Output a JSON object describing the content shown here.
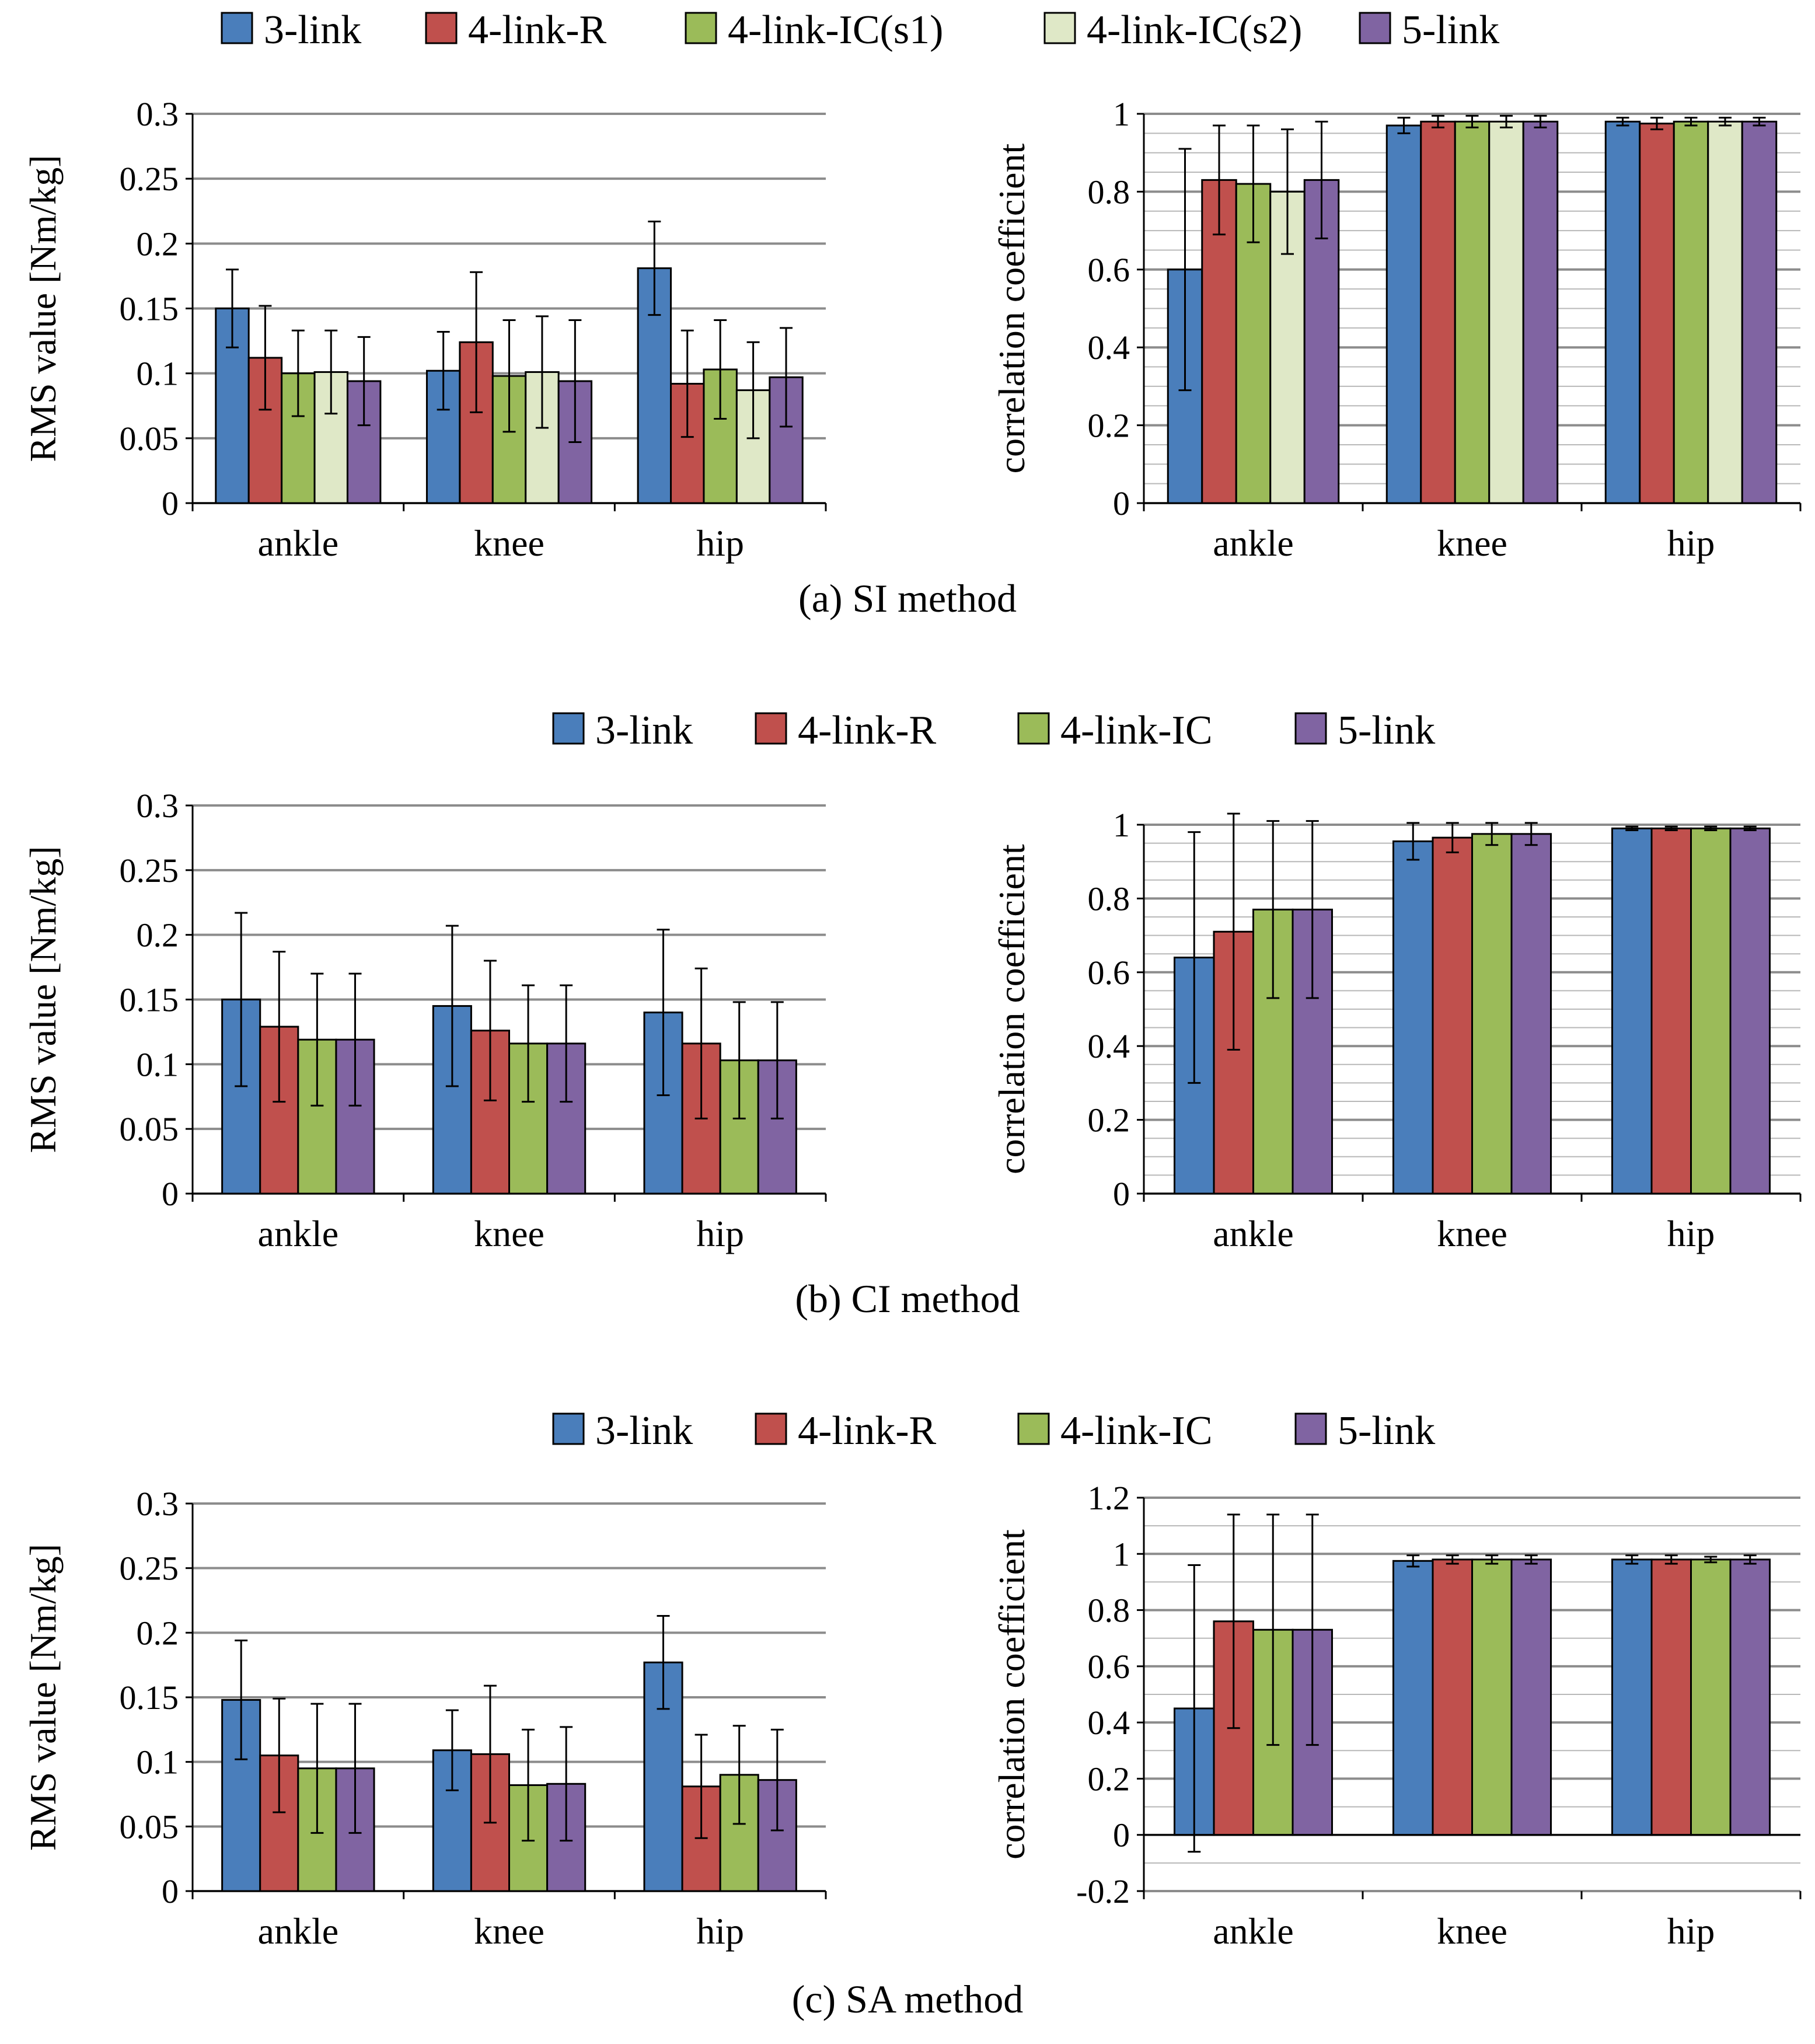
{
  "colors": {
    "3-link": "#4a7ebb",
    "4-link-R": "#c0504d",
    "4-link-IC": "#9bbb59",
    "4-link-IC(s1)": "#9bbb59",
    "4-link-IC(s2)": "#dfe8c7",
    "5-link": "#8064a2"
  },
  "captions": [
    "(a) SI method",
    "(b) CI method",
    "(c) SA method"
  ],
  "legends": [
    [
      "3-link",
      "4-link-R",
      "4-link-IC(s1)",
      "4-link-IC(s2)",
      "5-link"
    ],
    [
      "3-link",
      "4-link-R",
      "4-link-IC",
      "5-link"
    ],
    [
      "3-link",
      "4-link-R",
      "4-link-IC",
      "5-link"
    ]
  ],
  "chart_data": [
    {
      "id": "a-rms",
      "type": "bar",
      "title": "",
      "xlabel": "",
      "ylabel": "RMS value [Nm/kg]",
      "ylim": [
        0,
        0.3
      ],
      "yticks": [
        "0",
        "0.05",
        "0.1",
        "0.15",
        "0.2",
        "0.25",
        "0.3"
      ],
      "grid": true,
      "categories": [
        "ankle",
        "knee",
        "hip"
      ],
      "series": [
        {
          "name": "3-link",
          "values": [
            0.15,
            0.102,
            0.181
          ],
          "errors": [
            0.03,
            0.03,
            0.036
          ]
        },
        {
          "name": "4-link-R",
          "values": [
            0.112,
            0.124,
            0.092
          ],
          "errors": [
            0.04,
            0.054,
            0.041
          ]
        },
        {
          "name": "4-link-IC(s1)",
          "values": [
            0.1,
            0.098,
            0.103
          ],
          "errors": [
            0.033,
            0.043,
            0.038
          ]
        },
        {
          "name": "4-link-IC(s2)",
          "values": [
            0.101,
            0.101,
            0.087
          ],
          "errors": [
            0.032,
            0.043,
            0.037
          ]
        },
        {
          "name": "5-link",
          "values": [
            0.094,
            0.094,
            0.097
          ],
          "errors": [
            0.034,
            0.047,
            0.038
          ]
        }
      ]
    },
    {
      "id": "a-corr",
      "type": "bar",
      "title": "",
      "xlabel": "",
      "ylabel": "correlation coefficient",
      "ylim": [
        0,
        1
      ],
      "yticks": [
        "0",
        "0.2",
        "0.4",
        "0.6",
        "0.8",
        "1"
      ],
      "grid": true,
      "categories": [
        "ankle",
        "knee",
        "hip"
      ],
      "series": [
        {
          "name": "3-link",
          "values": [
            0.6,
            0.97,
            0.98
          ],
          "errors": [
            0.31,
            0.02,
            0.01
          ]
        },
        {
          "name": "4-link-R",
          "values": [
            0.83,
            0.98,
            0.975
          ],
          "errors": [
            0.14,
            0.015,
            0.015
          ]
        },
        {
          "name": "4-link-IC(s1)",
          "values": [
            0.82,
            0.98,
            0.98
          ],
          "errors": [
            0.15,
            0.015,
            0.01
          ]
        },
        {
          "name": "4-link-IC(s2)",
          "values": [
            0.8,
            0.98,
            0.98
          ],
          "errors": [
            0.16,
            0.015,
            0.01
          ]
        },
        {
          "name": "5-link",
          "values": [
            0.83,
            0.98,
            0.98
          ],
          "errors": [
            0.15,
            0.015,
            0.01
          ]
        }
      ]
    },
    {
      "id": "b-rms",
      "type": "bar",
      "title": "",
      "xlabel": "",
      "ylabel": "RMS value [Nm/kg]",
      "ylim": [
        0,
        0.3
      ],
      "yticks": [
        "0",
        "0.05",
        "0.1",
        "0.15",
        "0.2",
        "0.25",
        "0.3"
      ],
      "grid": true,
      "categories": [
        "ankle",
        "knee",
        "hip"
      ],
      "series": [
        {
          "name": "3-link",
          "values": [
            0.15,
            0.145,
            0.14
          ],
          "errors": [
            0.067,
            0.062,
            0.064
          ]
        },
        {
          "name": "4-link-R",
          "values": [
            0.129,
            0.126,
            0.116
          ],
          "errors": [
            0.058,
            0.054,
            0.058
          ]
        },
        {
          "name": "4-link-IC",
          "values": [
            0.119,
            0.116,
            0.103
          ],
          "errors": [
            0.051,
            0.045,
            0.045
          ]
        },
        {
          "name": "5-link",
          "values": [
            0.119,
            0.116,
            0.103
          ],
          "errors": [
            0.051,
            0.045,
            0.045
          ]
        }
      ]
    },
    {
      "id": "b-corr",
      "type": "bar",
      "title": "",
      "xlabel": "",
      "ylabel": "correlation coefficient",
      "ylim": [
        0,
        1
      ],
      "yticks": [
        "0",
        "0.2",
        "0.4",
        "0.6",
        "0.8",
        "1"
      ],
      "grid": true,
      "categories": [
        "ankle",
        "knee",
        "hip"
      ],
      "series": [
        {
          "name": "3-link",
          "values": [
            0.64,
            0.955,
            0.99
          ],
          "errors": [
            0.34,
            0.05,
            0.005
          ]
        },
        {
          "name": "4-link-R",
          "values": [
            0.71,
            0.965,
            0.99
          ],
          "errors": [
            0.32,
            0.04,
            0.005
          ]
        },
        {
          "name": "4-link-IC",
          "values": [
            0.77,
            0.975,
            0.99
          ],
          "errors": [
            0.24,
            0.03,
            0.005
          ]
        },
        {
          "name": "5-link",
          "values": [
            0.77,
            0.975,
            0.99
          ],
          "errors": [
            0.24,
            0.03,
            0.005
          ]
        }
      ]
    },
    {
      "id": "c-rms",
      "type": "bar",
      "title": "",
      "xlabel": "",
      "ylabel": "RMS value [Nm/kg]",
      "ylim": [
        0,
        0.3
      ],
      "yticks": [
        "0",
        "0.05",
        "0.1",
        "0.15",
        "0.2",
        "0.25",
        "0.3"
      ],
      "grid": true,
      "categories": [
        "ankle",
        "knee",
        "hip"
      ],
      "series": [
        {
          "name": "3-link",
          "values": [
            0.148,
            0.109,
            0.177
          ],
          "errors": [
            0.046,
            0.031,
            0.036
          ]
        },
        {
          "name": "4-link-R",
          "values": [
            0.105,
            0.106,
            0.081
          ],
          "errors": [
            0.044,
            0.053,
            0.04
          ]
        },
        {
          "name": "4-link-IC",
          "values": [
            0.095,
            0.082,
            0.09
          ],
          "errors": [
            0.05,
            0.043,
            0.038
          ]
        },
        {
          "name": "5-link",
          "values": [
            0.095,
            0.083,
            0.086
          ],
          "errors": [
            0.05,
            0.044,
            0.039
          ]
        }
      ]
    },
    {
      "id": "c-corr",
      "type": "bar",
      "title": "",
      "xlabel": "",
      "ylabel": "correlation coefficient",
      "ylim": [
        -0.2,
        1.2
      ],
      "yticks": [
        "-0.2",
        "0",
        "0.2",
        "0.4",
        "0.6",
        "0.8",
        "1",
        "1.2"
      ],
      "grid": true,
      "categories": [
        "ankle",
        "knee",
        "hip"
      ],
      "series": [
        {
          "name": "3-link",
          "values": [
            0.45,
            0.975,
            0.98
          ],
          "errors": [
            0.51,
            0.02,
            0.015
          ]
        },
        {
          "name": "4-link-R",
          "values": [
            0.76,
            0.98,
            0.98
          ],
          "errors": [
            0.38,
            0.015,
            0.015
          ]
        },
        {
          "name": "4-link-IC",
          "values": [
            0.73,
            0.98,
            0.98
          ],
          "errors": [
            0.41,
            0.015,
            0.01
          ]
        },
        {
          "name": "5-link",
          "values": [
            0.73,
            0.98,
            0.98
          ],
          "errors": [
            0.41,
            0.015,
            0.015
          ]
        }
      ]
    }
  ]
}
